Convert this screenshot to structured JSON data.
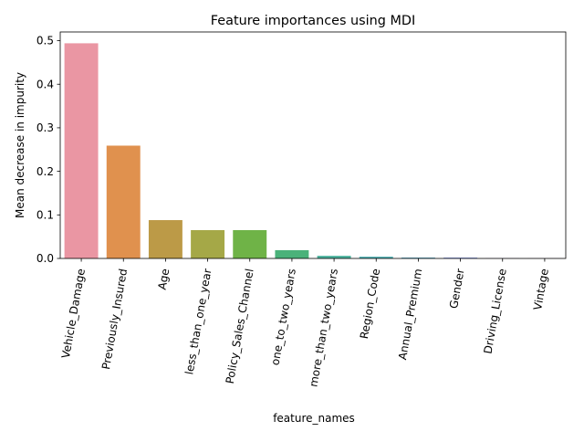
{
  "chart_data": {
    "type": "bar",
    "title": "Feature importances using MDI",
    "xlabel": "feature_names",
    "ylabel": "Mean decrease in impurity",
    "categories": [
      "Vehicle_Damage",
      "Previously_Insured",
      "Age",
      "less_than_one_year",
      "Policy_Sales_Channel",
      "one_to_two_years",
      "more_than_two_years",
      "Region_Code",
      "Annual_Premium",
      "Gender",
      "Driving_License",
      "Vintage"
    ],
    "values": [
      0.494,
      0.259,
      0.088,
      0.065,
      0.065,
      0.019,
      0.006,
      0.004,
      0.002,
      0.002,
      0.0005,
      0.0003
    ],
    "colors": [
      "#ea96a3",
      "#e0914e",
      "#bc9a47",
      "#a5a847",
      "#6fb347",
      "#4ab27a",
      "#4ab19c",
      "#4caeb0",
      "#5aa9c7",
      "#8d9ee7",
      "#c98ee8",
      "#e88fd3"
    ],
    "ylim": [
      0,
      0.52
    ],
    "yticks": [
      "0.0",
      "0.1",
      "0.2",
      "0.3",
      "0.4",
      "0.5"
    ],
    "grid": false,
    "legend": "none"
  }
}
